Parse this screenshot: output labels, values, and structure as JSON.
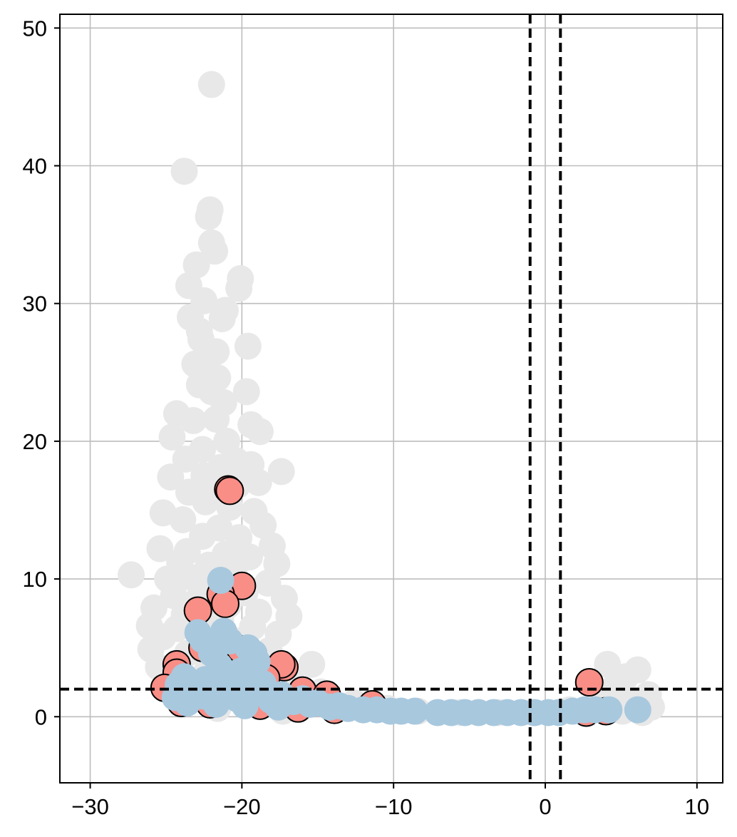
{
  "chart_data": {
    "type": "scatter",
    "title": "",
    "xlabel": "",
    "ylabel": "",
    "xlim": [
      -32,
      11.7
    ],
    "ylim": [
      -4.8,
      51
    ],
    "xticks": [
      -30,
      -20,
      -10,
      0,
      10
    ],
    "yticks": [
      0,
      10,
      20,
      30,
      40,
      50
    ],
    "xtick_labels": [
      "−30",
      "−20",
      "−10",
      "0",
      "10"
    ],
    "ytick_labels": [
      "0",
      "10",
      "20",
      "30",
      "40",
      "50"
    ],
    "grid": true,
    "legend": "none",
    "colors": {
      "background_points": "#e8e8e8",
      "red_points": "#f98e86",
      "blue_points": "#a8c8de",
      "grid": "#bdbdbd",
      "threshold_lines": "#000000"
    },
    "threshold_lines": {
      "vertical_x": [
        -1,
        1
      ],
      "horizontal_y": [
        2
      ]
    },
    "series": [
      {
        "color": "#e8e8e8",
        "outline": false,
        "points": [
          [
            -22.0,
            45.9
          ],
          [
            -23.8,
            39.6
          ],
          [
            -22.1,
            36.8
          ],
          [
            -22.2,
            36.3
          ],
          [
            -22.0,
            34.4
          ],
          [
            -21.8,
            33.8
          ],
          [
            -23.0,
            32.8
          ],
          [
            -20.1,
            31.8
          ],
          [
            -20.2,
            31.1
          ],
          [
            -23.5,
            31.3
          ],
          [
            -22.5,
            30.2
          ],
          [
            -21.1,
            29.5
          ],
          [
            -23.4,
            29.0
          ],
          [
            -21.3,
            28.9
          ],
          [
            -22.8,
            28.0
          ],
          [
            -22.7,
            27.4
          ],
          [
            -19.6,
            26.9
          ],
          [
            -21.7,
            26.5
          ],
          [
            -23.1,
            25.6
          ],
          [
            -22.4,
            25.0
          ],
          [
            -21.6,
            24.6
          ],
          [
            -22.8,
            24.1
          ],
          [
            -22.0,
            23.6
          ],
          [
            -19.7,
            23.6
          ],
          [
            -21.2,
            22.8
          ],
          [
            -24.3,
            22.0
          ],
          [
            -21.7,
            21.6
          ],
          [
            -23.2,
            21.5
          ],
          [
            -19.4,
            21.2
          ],
          [
            -18.8,
            20.7
          ],
          [
            -24.6,
            20.3
          ],
          [
            -21.0,
            20.0
          ],
          [
            -22.6,
            19.4
          ],
          [
            -20.4,
            18.6
          ],
          [
            -23.7,
            18.7
          ],
          [
            -19.4,
            18.3
          ],
          [
            -21.4,
            18.1
          ],
          [
            -17.4,
            17.8
          ],
          [
            -24.7,
            17.4
          ],
          [
            -22.5,
            17.5
          ],
          [
            -18.9,
            17.0
          ],
          [
            -20.3,
            16.8
          ],
          [
            -23.5,
            16.3
          ],
          [
            -21.9,
            16.0
          ],
          [
            -22.4,
            15.6
          ],
          [
            -20.8,
            15.2
          ],
          [
            -25.2,
            14.8
          ],
          [
            -19.2,
            14.9
          ],
          [
            -23.9,
            14.3
          ],
          [
            -18.6,
            13.9
          ],
          [
            -21.5,
            13.7
          ],
          [
            -22.6,
            13.1
          ],
          [
            -20.2,
            13.0
          ],
          [
            -18.0,
            12.4
          ],
          [
            -25.4,
            12.2
          ],
          [
            -23.6,
            12.0
          ],
          [
            -21.1,
            11.8
          ],
          [
            -19.5,
            11.6
          ],
          [
            -24.1,
            11.2
          ],
          [
            -22.2,
            11.0
          ],
          [
            -17.7,
            11.1
          ],
          [
            -27.3,
            10.3
          ],
          [
            -20.5,
            10.4
          ],
          [
            -24.9,
            10.0
          ],
          [
            -23.3,
            10.1
          ],
          [
            -18.3,
            9.7
          ],
          [
            -21.8,
            9.4
          ],
          [
            -19.8,
            9.0
          ],
          [
            -24.5,
            8.8
          ],
          [
            -17.2,
            8.6
          ],
          [
            -22.9,
            8.5
          ],
          [
            -20.9,
            8.1
          ],
          [
            -25.8,
            7.9
          ],
          [
            -18.9,
            7.6
          ],
          [
            -23.8,
            7.4
          ],
          [
            -16.9,
            7.3
          ],
          [
            -21.4,
            7.0
          ],
          [
            -26.1,
            6.6
          ],
          [
            -24.3,
            6.4
          ],
          [
            -19.3,
            6.5
          ],
          [
            -22.5,
            6.1
          ],
          [
            -17.6,
            6.0
          ],
          [
            -25.2,
            5.8
          ],
          [
            -20.4,
            5.5
          ],
          [
            -26.0,
            4.9
          ],
          [
            -23.6,
            4.6
          ],
          [
            -18.2,
            4.8
          ],
          [
            -21.7,
            4.3
          ],
          [
            -15.4,
            3.8
          ],
          [
            -25.5,
            3.6
          ],
          [
            -22.3,
            3.3
          ],
          [
            -19.6,
            3.1
          ],
          [
            -16.8,
            2.9
          ],
          [
            -24.8,
            2.6
          ],
          [
            -20.8,
            2.3
          ],
          [
            -18.0,
            2.1
          ],
          [
            -14.8,
            1.8
          ],
          [
            -23.1,
            1.5
          ],
          [
            -16.2,
            1.3
          ],
          [
            -12.6,
            1.0
          ],
          [
            -19.0,
            0.8
          ],
          [
            -21.6,
            0.6
          ],
          [
            -10.4,
            0.6
          ],
          [
            -17.3,
            0.4
          ],
          [
            -8.4,
            0.4
          ],
          [
            -5.6,
            0.3
          ],
          [
            -3.1,
            0.3
          ],
          [
            -0.8,
            0.3
          ],
          [
            1.6,
            0.5
          ],
          [
            4.1,
            3.8
          ],
          [
            6.1,
            3.4
          ],
          [
            5.3,
            2.9
          ],
          [
            4.6,
            2.2
          ],
          [
            6.8,
            1.6
          ],
          [
            5.8,
            1.2
          ],
          [
            3.7,
            0.9
          ],
          [
            7.0,
            0.7
          ],
          [
            5.1,
            0.4
          ],
          [
            6.4,
            0.3
          ]
        ]
      },
      {
        "color": "#f98e86",
        "outline": true,
        "points": [
          [
            -20.9,
            16.5
          ],
          [
            -20.8,
            16.4
          ],
          [
            -20.0,
            9.5
          ],
          [
            -21.4,
            8.9
          ],
          [
            -21.1,
            8.2
          ],
          [
            -22.9,
            7.7
          ],
          [
            -22.6,
            5.0
          ],
          [
            -20.1,
            4.9
          ],
          [
            -24.3,
            3.8
          ],
          [
            -17.2,
            3.6
          ],
          [
            -17.4,
            3.8
          ],
          [
            -24.3,
            3.2
          ],
          [
            -18.4,
            2.8
          ],
          [
            -25.1,
            2.1
          ],
          [
            -16.0,
            1.9
          ],
          [
            -14.4,
            1.6
          ],
          [
            -23.5,
            1.5
          ],
          [
            -19.6,
            1.3
          ],
          [
            -11.4,
            0.9
          ],
          [
            2.9,
            2.5
          ],
          [
            -24.0,
            1.0
          ],
          [
            -22.1,
            0.9
          ],
          [
            -18.8,
            0.8
          ],
          [
            -16.3,
            0.6
          ],
          [
            -13.9,
            0.5
          ],
          [
            2.7,
            0.3
          ],
          [
            4.0,
            0.4
          ]
        ]
      },
      {
        "color": "#a8c8de",
        "outline": false,
        "points": [
          [
            -21.4,
            9.9
          ],
          [
            -21.2,
            6.2
          ],
          [
            -22.9,
            6.1
          ],
          [
            -22.6,
            5.6
          ],
          [
            -20.8,
            5.5
          ],
          [
            -19.6,
            5.0
          ],
          [
            -19.2,
            4.6
          ],
          [
            -22.0,
            4.6
          ],
          [
            -19.0,
            4.0
          ],
          [
            -21.5,
            3.7
          ],
          [
            -20.1,
            3.3
          ],
          [
            -23.8,
            2.9
          ],
          [
            -22.4,
            2.7
          ],
          [
            -18.6,
            2.4
          ],
          [
            -24.2,
            2.3
          ],
          [
            -21.0,
            2.1
          ],
          [
            -23.3,
            1.9
          ],
          [
            -19.4,
            1.8
          ],
          [
            -17.4,
            1.6
          ],
          [
            -22.5,
            1.5
          ],
          [
            -24.4,
            1.4
          ],
          [
            -20.3,
            1.3
          ],
          [
            -18.1,
            1.2
          ],
          [
            -16.6,
            1.1
          ],
          [
            -23.6,
            1.0
          ],
          [
            -21.7,
            0.9
          ],
          [
            -15.5,
            0.9
          ],
          [
            -19.8,
            0.8
          ],
          [
            -14.2,
            0.7
          ],
          [
            -17.6,
            0.7
          ],
          [
            -13.0,
            0.6
          ],
          [
            -12.0,
            0.5
          ],
          [
            -11.1,
            0.5
          ],
          [
            -10.2,
            0.4
          ],
          [
            -8.6,
            0.4
          ],
          [
            -7.1,
            0.3
          ],
          [
            -6.2,
            0.3
          ],
          [
            -5.3,
            0.3
          ],
          [
            -4.4,
            0.3
          ],
          [
            -3.4,
            0.3
          ],
          [
            -2.5,
            0.3
          ],
          [
            -1.6,
            0.3
          ],
          [
            -0.7,
            0.3
          ],
          [
            0.2,
            0.3
          ],
          [
            0.9,
            0.3
          ],
          [
            1.8,
            0.4
          ],
          [
            2.6,
            0.5
          ],
          [
            3.3,
            0.5
          ],
          [
            4.2,
            0.5
          ],
          [
            6.1,
            0.5
          ],
          [
            -9.5,
            0.4
          ],
          [
            -15.0,
            1.0
          ],
          [
            -13.6,
            0.8
          ],
          [
            -16.0,
            1.3
          ]
        ]
      }
    ]
  }
}
